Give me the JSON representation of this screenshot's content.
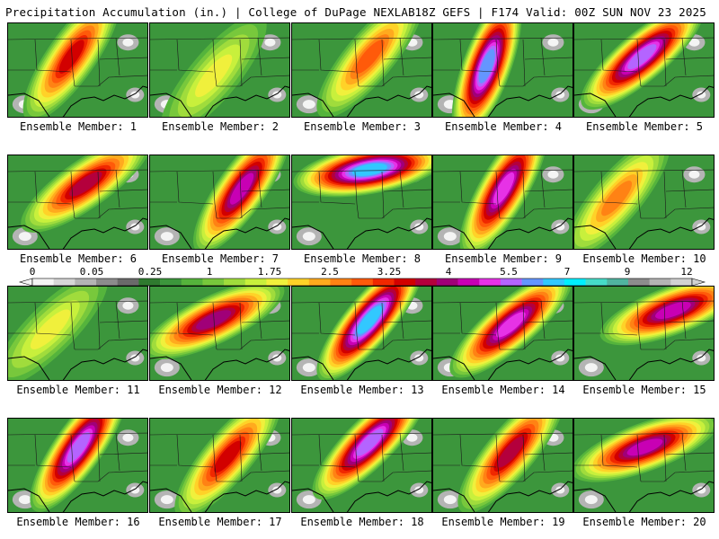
{
  "header": {
    "left_title": "Precipitation Accumulation (in.) | College of DuPage NEXLAB",
    "right_title": "18Z GEFS | F174 Valid: 00Z SUN NOV 23 2025"
  },
  "members": [
    {
      "label": "Ensemble Member: 1",
      "max_level": 17,
      "center": [
        0.45,
        0.35
      ],
      "angle": -55
    },
    {
      "label": "Ensemble Member: 2",
      "max_level": 11,
      "center": [
        0.45,
        0.55
      ],
      "angle": -50
    },
    {
      "label": "Ensemble Member: 3",
      "max_level": 15,
      "center": [
        0.55,
        0.35
      ],
      "angle": -50
    },
    {
      "label": "Ensemble Member: 4",
      "max_level": 23,
      "center": [
        0.38,
        0.45
      ],
      "angle": -70
    },
    {
      "label": "Ensemble Member: 5",
      "max_level": 22,
      "center": [
        0.48,
        0.35
      ],
      "angle": -40
    },
    {
      "label": "Ensemble Member: 6",
      "max_level": 18,
      "center": [
        0.55,
        0.3
      ],
      "angle": -35
    },
    {
      "label": "Ensemble Member: 7",
      "max_level": 20,
      "center": [
        0.65,
        0.35
      ],
      "angle": -55
    },
    {
      "label": "Ensemble Member: 8",
      "max_level": 24,
      "center": [
        0.55,
        0.15
      ],
      "angle": -10
    },
    {
      "label": "Ensemble Member: 9",
      "max_level": 21,
      "center": [
        0.5,
        0.35
      ],
      "angle": -60
    },
    {
      "label": "Ensemble Member: 10",
      "max_level": 14,
      "center": [
        0.3,
        0.45
      ],
      "angle": -50
    },
    {
      "label": "Ensemble Member: 11",
      "max_level": 11,
      "center": [
        0.3,
        0.45
      ],
      "angle": -45
    },
    {
      "label": "Ensemble Member: 12",
      "max_level": 19,
      "center": [
        0.45,
        0.35
      ],
      "angle": -25
    },
    {
      "label": "Ensemble Member: 13",
      "max_level": 24,
      "center": [
        0.55,
        0.35
      ],
      "angle": -50
    },
    {
      "label": "Ensemble Member: 14",
      "max_level": 21,
      "center": [
        0.55,
        0.4
      ],
      "angle": -40
    },
    {
      "label": "Ensemble Member: 15",
      "max_level": 20,
      "center": [
        0.7,
        0.25
      ],
      "angle": -20
    },
    {
      "label": "Ensemble Member: 16",
      "max_level": 22,
      "center": [
        0.5,
        0.3
      ],
      "angle": -55
    },
    {
      "label": "Ensemble Member: 17",
      "max_level": 17,
      "center": [
        0.55,
        0.4
      ],
      "angle": -50
    },
    {
      "label": "Ensemble Member: 18",
      "max_level": 22,
      "center": [
        0.55,
        0.25
      ],
      "angle": -45
    },
    {
      "label": "Ensemble Member: 19",
      "max_level": 18,
      "center": [
        0.55,
        0.35
      ],
      "angle": -50
    },
    {
      "label": "Ensemble Member: 20",
      "max_level": 20,
      "center": [
        0.5,
        0.3
      ],
      "angle": -20
    }
  ],
  "colorbar": {
    "tick_labels": [
      "0",
      "0.05",
      "0.25",
      "1",
      "1.75",
      "2.5",
      "3.25",
      "4",
      "5.5",
      "7",
      "9",
      "12"
    ],
    "colors": [
      "#f4f4f4",
      "#d6d6d6",
      "#b4b4b4",
      "#8c8c8c",
      "#6a6a6a",
      "#2f7a2f",
      "#3c963c",
      "#55b43c",
      "#78c83c",
      "#a0dc3c",
      "#c8f03c",
      "#f0f03c",
      "#ffd228",
      "#ffaa1e",
      "#ff8214",
      "#ff5a0a",
      "#f02800",
      "#d20000",
      "#b4003c",
      "#a00078",
      "#c800b4",
      "#e632e6",
      "#b464ff",
      "#6496ff",
      "#32c8ff",
      "#00f0ff",
      "#46dcc8",
      "#50b4a0",
      "#8c8c8c",
      "#b4b4b4",
      "#d2d2d2"
    ]
  }
}
